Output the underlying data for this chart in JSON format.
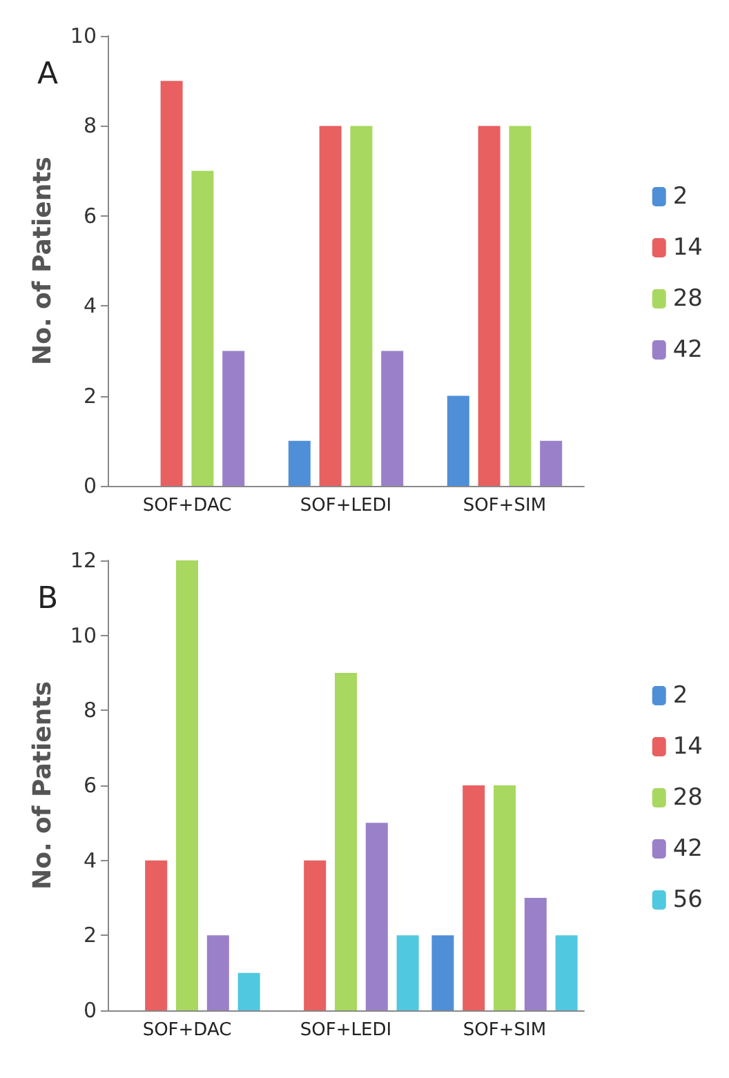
{
  "chart_data": [
    {
      "type": "bar",
      "title": "A",
      "ylabel": "No. of Patients",
      "categories": [
        "SOF+DAC",
        "SOF+LEDI",
        "SOF+SIM"
      ],
      "series": [
        {
          "name": "2",
          "color": "#4f8fd8",
          "values": [
            0,
            1,
            2
          ]
        },
        {
          "name": "14",
          "color": "#e86060",
          "values": [
            9,
            8,
            8
          ]
        },
        {
          "name": "28",
          "color": "#a8d860",
          "values": [
            7,
            8,
            8
          ]
        },
        {
          "name": "42",
          "color": "#9a80c8",
          "values": [
            3,
            3,
            1
          ]
        }
      ],
      "ylim": [
        0,
        10
      ],
      "yticks": [
        0,
        2,
        4,
        6,
        8,
        10
      ],
      "grid": false,
      "legend": "right"
    },
    {
      "type": "bar",
      "title": "B",
      "ylabel": "No. of Patients",
      "categories": [
        "SOF+DAC",
        "SOF+LEDI",
        "SOF+SIM"
      ],
      "series": [
        {
          "name": "2",
          "color": "#4f8fd8",
          "values": [
            0,
            0,
            2
          ]
        },
        {
          "name": "14",
          "color": "#e86060",
          "values": [
            4,
            4,
            6
          ]
        },
        {
          "name": "28",
          "color": "#a8d860",
          "values": [
            12,
            9,
            6
          ]
        },
        {
          "name": "42",
          "color": "#9a80c8",
          "values": [
            2,
            5,
            3
          ]
        },
        {
          "name": "56",
          "color": "#50c8e0",
          "values": [
            1,
            2,
            2
          ]
        }
      ],
      "ylim": [
        0,
        12
      ],
      "yticks": [
        0,
        2,
        4,
        6,
        8,
        10,
        12
      ],
      "grid": false,
      "legend": "right"
    }
  ]
}
